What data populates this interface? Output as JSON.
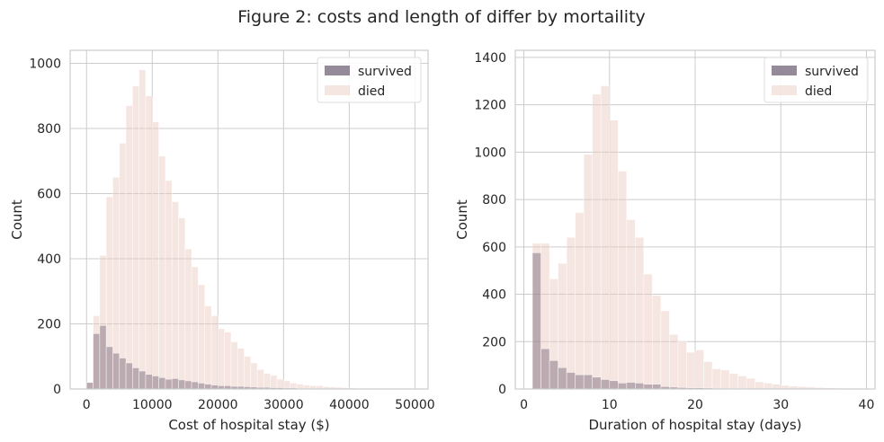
{
  "figure_title": "Figure 2: costs and length of differ by mortaility",
  "colors": {
    "survived": "#5b4b63",
    "died": "#ecc8bd",
    "grid": "#cccccc",
    "axes_edge": "#cccccc",
    "text": "#262626"
  },
  "chart_data": [
    {
      "type": "bar",
      "subtype": "histogram",
      "xlabel": "Cost of hospital stay ($)",
      "ylabel": "Count",
      "xlim": [
        -2500,
        52000
      ],
      "ylim": [
        0,
        1040
      ],
      "xticks": [
        0,
        10000,
        20000,
        30000,
        40000,
        50000
      ],
      "yticks": [
        0,
        200,
        400,
        600,
        800,
        1000
      ],
      "bin_start": 0,
      "bin_width": 1000,
      "legend": {
        "position": "top-right",
        "entries": [
          "survived",
          "died"
        ]
      },
      "series": [
        {
          "name": "died",
          "values": [
            20,
            225,
            410,
            590,
            650,
            755,
            870,
            930,
            980,
            900,
            820,
            715,
            640,
            575,
            525,
            430,
            375,
            320,
            255,
            225,
            185,
            175,
            145,
            125,
            100,
            80,
            60,
            48,
            42,
            30,
            25,
            18,
            15,
            12,
            10,
            10,
            7,
            6,
            5,
            4,
            3,
            2,
            2,
            1,
            1,
            1,
            1,
            1,
            0,
            0
          ]
        },
        {
          "name": "survived",
          "values": [
            20,
            170,
            195,
            130,
            110,
            95,
            80,
            65,
            55,
            45,
            40,
            35,
            30,
            32,
            28,
            25,
            22,
            18,
            15,
            12,
            10,
            10,
            8,
            8,
            7,
            6,
            5,
            5,
            4,
            4,
            3,
            3,
            2,
            2,
            2,
            1,
            1,
            1,
            1,
            1,
            0,
            0,
            0,
            0,
            0,
            0,
            0,
            0,
            0,
            0
          ]
        }
      ]
    },
    {
      "type": "bar",
      "subtype": "histogram",
      "xlabel": "Duration of hospital stay (days)",
      "ylabel": "Count",
      "xlim": [
        -1,
        41
      ],
      "ylim": [
        0,
        1430
      ],
      "xticks": [
        0,
        10,
        20,
        30,
        40
      ],
      "yticks": [
        0,
        200,
        400,
        600,
        800,
        1000,
        1200,
        1400
      ],
      "bin_start": 1,
      "bin_width": 1,
      "legend": {
        "position": "top-right",
        "entries": [
          "survived",
          "died"
        ]
      },
      "series": [
        {
          "name": "died",
          "values": [
            615,
            615,
            465,
            530,
            640,
            745,
            990,
            1245,
            1280,
            1135,
            920,
            715,
            640,
            485,
            395,
            330,
            230,
            200,
            155,
            165,
            115,
            85,
            80,
            65,
            55,
            45,
            30,
            25,
            20,
            15,
            12,
            10,
            8,
            6,
            5,
            4,
            3,
            2
          ]
        },
        {
          "name": "survived",
          "values": [
            575,
            170,
            120,
            90,
            70,
            60,
            60,
            50,
            40,
            35,
            25,
            28,
            25,
            20,
            20,
            10,
            8,
            6,
            5,
            5,
            4,
            3,
            3,
            2,
            2,
            1,
            1,
            1,
            1,
            0,
            0,
            0,
            0,
            0,
            0,
            0,
            0,
            0
          ]
        }
      ]
    }
  ]
}
